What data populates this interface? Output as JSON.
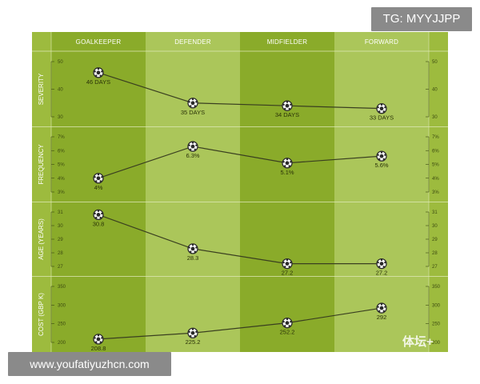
{
  "overlays": {
    "tg_label": "TG: MYYJJPP",
    "url_label": "www.youfatiyuzhcn.com",
    "watermark": "体坛+"
  },
  "colors": {
    "frame": "#8fb52d",
    "column_dark": "#8aab2a",
    "column_light": "#abc65a",
    "row_bg_dark": "#9dbb3e",
    "row_bg_light": "#b6cd6c",
    "line": "#3a3f20",
    "text_on_green": "#ffffff"
  },
  "chart_data": {
    "type": "line",
    "categories": [
      "GOALKEEPER",
      "DEFENDER",
      "MIDFIELDER",
      "FORWARD"
    ],
    "panels": [
      {
        "ylabel": "SEVERITY",
        "ticks": [
          "50",
          "40",
          "30"
        ],
        "ylim": [
          30,
          50
        ],
        "values": [
          46,
          35,
          34,
          33
        ],
        "labels": [
          "46 DAYS",
          "35 DAYS",
          "34 DAYS",
          "33 DAYS"
        ]
      },
      {
        "ylabel": "FREQUENCY",
        "ticks": [
          "7%",
          "6%",
          "5%",
          "4%",
          "3%"
        ],
        "ylim": [
          3,
          7
        ],
        "values": [
          4,
          6.3,
          5.1,
          5.6
        ],
        "labels": [
          "4%",
          "6.3%",
          "5.1%",
          "5.6%"
        ]
      },
      {
        "ylabel": "AGE (YEARS)",
        "ticks": [
          "31",
          "30",
          "29",
          "28",
          "27"
        ],
        "ylim": [
          27,
          31
        ],
        "values": [
          30.8,
          28.3,
          27.2,
          27.2
        ],
        "labels": [
          "30.8",
          "28.3",
          "27.2",
          "27.2"
        ]
      },
      {
        "ylabel": "COST (GBP K)",
        "ticks": [
          "350",
          "300",
          "250",
          "200"
        ],
        "ylim": [
          200,
          350
        ],
        "values": [
          208.8,
          225.2,
          252.2,
          292
        ],
        "labels": [
          "208.8",
          "225.2",
          "252.2",
          "292"
        ]
      }
    ]
  }
}
